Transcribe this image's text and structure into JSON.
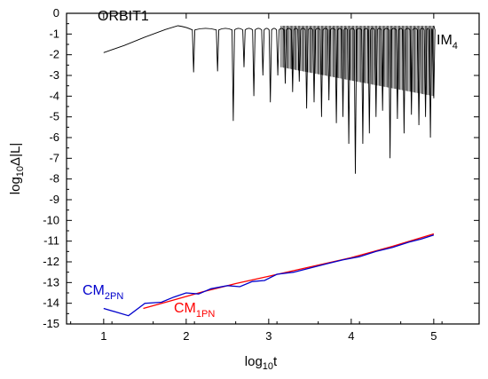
{
  "chart_data": {
    "type": "line",
    "title": "ORBIT1",
    "xlabel": {
      "main": "log",
      "sub": "10",
      "tail": "t"
    },
    "ylabel": {
      "main": "log",
      "sub": "10",
      "tail": "Δ|L|"
    },
    "xlim": [
      0.55,
      5.55
    ],
    "ylim": [
      -15,
      0
    ],
    "xticks": [
      1,
      2,
      3,
      4,
      5
    ],
    "yticks": [
      0,
      -1,
      -2,
      -3,
      -4,
      -5,
      -6,
      -7,
      -8,
      -9,
      -10,
      -11,
      -12,
      -13,
      -14,
      -15
    ],
    "grid": false,
    "colors": {
      "IM": "#000000",
      "CM1PN": "#ff0000",
      "CM2PN": "#0000cc"
    },
    "series": [
      {
        "name": "IM4",
        "label": {
          "main": "IM",
          "sub": "4"
        },
        "description": "oscillating error with many dips; envelope top near -0.6",
        "smooth_start": [
          [
            1.0,
            -1.9
          ],
          [
            1.25,
            -1.55
          ],
          [
            1.5,
            -1.15
          ],
          [
            1.75,
            -0.78
          ],
          [
            1.9,
            -0.6
          ]
        ],
        "dips": [
          [
            2.09,
            -2.85
          ],
          [
            2.38,
            -2.8
          ],
          [
            2.57,
            -5.2
          ],
          [
            2.7,
            -2.6
          ],
          [
            2.82,
            -4.0
          ],
          [
            2.93,
            -3.0
          ],
          [
            3.02,
            -4.3
          ],
          [
            3.11,
            -3.0
          ],
          [
            3.2,
            -3.4
          ],
          [
            3.29,
            -3.8
          ],
          [
            3.37,
            -3.3
          ],
          [
            3.46,
            -4.6
          ],
          [
            3.55,
            -4.3
          ],
          [
            3.64,
            -5.0
          ],
          [
            3.73,
            -4.2
          ],
          [
            3.82,
            -5.3
          ],
          [
            3.9,
            -5.0
          ],
          [
            3.97,
            -6.3
          ],
          [
            4.05,
            -7.75
          ],
          [
            4.14,
            -6.3
          ],
          [
            4.22,
            -5.8
          ],
          [
            4.3,
            -5.0
          ],
          [
            4.38,
            -4.7
          ],
          [
            4.47,
            -7.0
          ],
          [
            4.56,
            -5.1
          ],
          [
            4.64,
            -5.8
          ],
          [
            4.73,
            -4.9
          ],
          [
            4.82,
            -5.4
          ],
          [
            4.9,
            -5.0
          ],
          [
            4.96,
            -6.0
          ],
          [
            5.0,
            -4.1
          ]
        ],
        "envelope_top": -0.6,
        "dense_band_bottom": -4.0,
        "x_end": 5.0
      },
      {
        "name": "CM1PN",
        "label": {
          "main": "CM",
          "sub": "1PN"
        },
        "points": [
          [
            1.48,
            -14.25
          ],
          [
            1.8,
            -13.9
          ],
          [
            2.2,
            -13.45
          ],
          [
            2.6,
            -13.05
          ],
          [
            3.0,
            -12.7
          ],
          [
            3.5,
            -12.25
          ],
          [
            4.0,
            -11.8
          ],
          [
            4.5,
            -11.25
          ],
          [
            5.0,
            -10.65
          ]
        ]
      },
      {
        "name": "CM2PN",
        "label": {
          "main": "CM",
          "sub": "2PN"
        },
        "points": [
          [
            1.0,
            -14.25
          ],
          [
            1.3,
            -14.6
          ],
          [
            1.5,
            -14.0
          ],
          [
            1.7,
            -13.95
          ],
          [
            1.85,
            -13.7
          ],
          [
            2.0,
            -13.5
          ],
          [
            2.15,
            -13.55
          ],
          [
            2.3,
            -13.3
          ],
          [
            2.5,
            -13.15
          ],
          [
            2.65,
            -13.2
          ],
          [
            2.8,
            -12.95
          ],
          [
            2.95,
            -12.9
          ],
          [
            3.1,
            -12.6
          ],
          [
            3.3,
            -12.5
          ],
          [
            3.5,
            -12.3
          ],
          [
            3.7,
            -12.1
          ],
          [
            3.9,
            -11.9
          ],
          [
            4.1,
            -11.75
          ],
          [
            4.3,
            -11.5
          ],
          [
            4.5,
            -11.3
          ],
          [
            4.7,
            -11.05
          ],
          [
            4.85,
            -10.9
          ],
          [
            5.0,
            -10.7
          ]
        ]
      }
    ]
  }
}
